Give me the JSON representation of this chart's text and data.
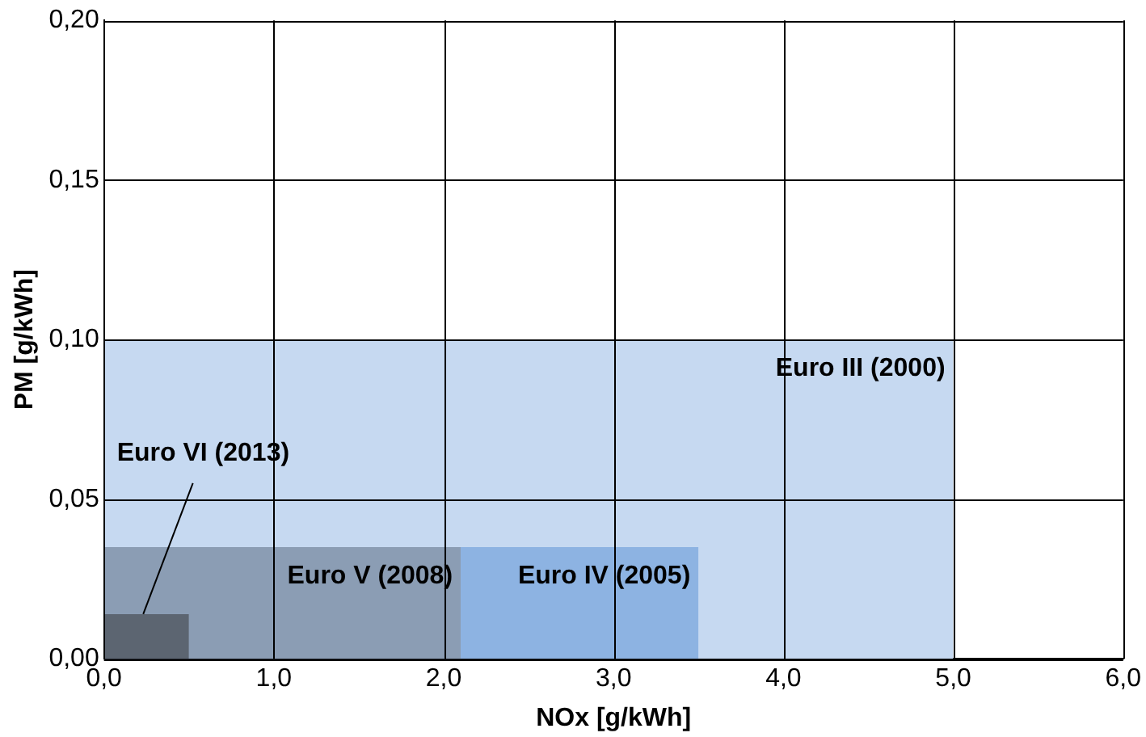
{
  "chart_data": {
    "type": "area",
    "xlabel": "NOx [g/kWh]",
    "ylabel": "PM [g/kWh]",
    "series": [
      {
        "name": "Euro III (2000)",
        "color": "#c6d9f1",
        "x": [
          0,
          5.0
        ],
        "values": [
          0.1,
          0.1
        ]
      },
      {
        "name": "Euro IV (2005)",
        "color": "#8db3e2",
        "x": [
          0,
          3.5
        ],
        "values": [
          0.035,
          0.035
        ]
      },
      {
        "name": "Euro V (2008)",
        "color": "#8b9db4",
        "x": [
          0,
          2.1
        ],
        "values": [
          0.035,
          0.035
        ]
      },
      {
        "name": "Euro VI (2013)",
        "color": "#5c6571",
        "x": [
          0,
          0.5
        ],
        "values": [
          0.014,
          0.014
        ]
      }
    ],
    "xlim": [
      0,
      6
    ],
    "xticks": [
      {
        "value": 0,
        "label": "0,0"
      },
      {
        "value": 1,
        "label": "1,0"
      },
      {
        "value": 2,
        "label": "2,0"
      },
      {
        "value": 3,
        "label": "3,0"
      },
      {
        "value": 4,
        "label": "4,0"
      },
      {
        "value": 5,
        "label": "5,0"
      },
      {
        "value": 6,
        "label": "6,0"
      }
    ],
    "ylim": [
      0,
      0.2
    ],
    "yticks": [
      {
        "value": 0,
        "label": "0,00"
      },
      {
        "value": 0.05,
        "label": "0,05"
      },
      {
        "value": 0.1,
        "label": "0,10"
      },
      {
        "value": 0.15,
        "label": "0,15"
      },
      {
        "value": 0.2,
        "label": "0,20"
      }
    ],
    "grid": true,
    "legend": false
  }
}
